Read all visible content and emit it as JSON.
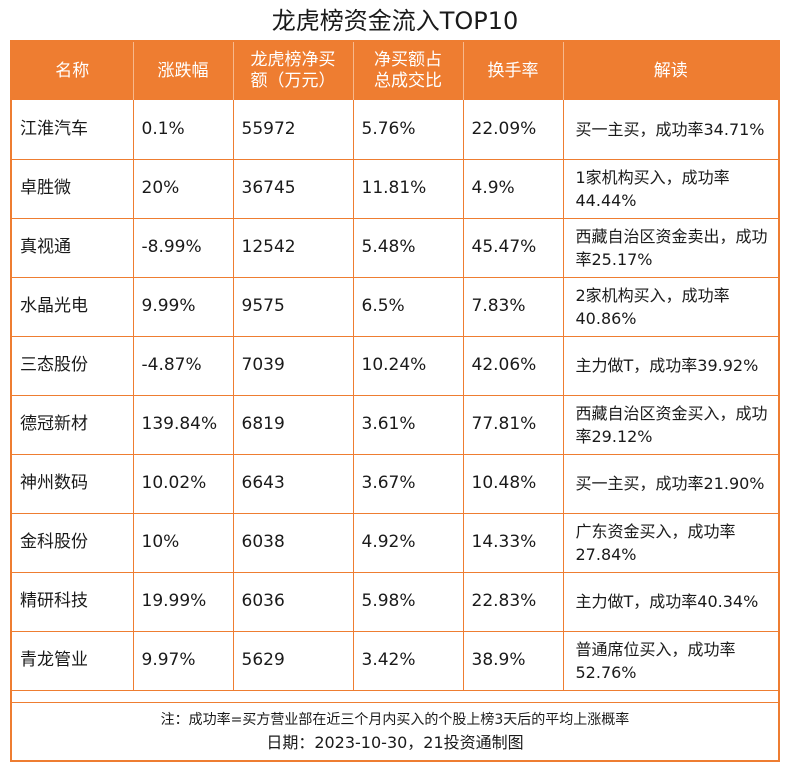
{
  "title": "龙虎榜资金流入TOP10",
  "headers": [
    "名称",
    "涨跌幅",
    "龙虎榜净买额（万元）",
    "净买额占总成交比",
    "换手率",
    "解读"
  ],
  "header_lines": [
    [
      "名称"
    ],
    [
      "涨跌幅"
    ],
    [
      "龙虎榜净买",
      "额（万元）"
    ],
    [
      "净买额占",
      "总成交比"
    ],
    [
      "换手率"
    ],
    [
      "解读"
    ]
  ],
  "rows": [
    {
      "name": "江淮汽车",
      "change": "0.1%",
      "net_buy": "55972",
      "ratio": "5.76%",
      "turnover": "22.09%",
      "note": "买一主买，成功率34.71%"
    },
    {
      "name": "卓胜微",
      "change": "20%",
      "net_buy": "36745",
      "ratio": "11.81%",
      "turnover": "4.9%",
      "note": "1家机构买入，成功率44.44%"
    },
    {
      "name": "真视通",
      "change": "-8.99%",
      "net_buy": "12542",
      "ratio": "5.48%",
      "turnover": "45.47%",
      "note": "西藏自治区资金卖出，成功率25.17%"
    },
    {
      "name": "水晶光电",
      "change": "9.99%",
      "net_buy": "9575",
      "ratio": "6.5%",
      "turnover": "7.83%",
      "note": "2家机构买入，成功率40.86%"
    },
    {
      "name": "三态股份",
      "change": "-4.87%",
      "net_buy": "7039",
      "ratio": "10.24%",
      "turnover": "42.06%",
      "note": "主力做T，成功率39.92%"
    },
    {
      "name": "德冠新材",
      "change": "139.84%",
      "net_buy": "6819",
      "ratio": "3.61%",
      "turnover": "77.81%",
      "note": "西藏自治区资金买入，成功率29.12%"
    },
    {
      "name": "神州数码",
      "change": "10.02%",
      "net_buy": "6643",
      "ratio": "3.67%",
      "turnover": "10.48%",
      "note": "买一主买，成功率21.90%"
    },
    {
      "name": "金科股份",
      "change": "10%",
      "net_buy": "6038",
      "ratio": "4.92%",
      "turnover": "14.33%",
      "note": "广东资金买入，成功率27.84%"
    },
    {
      "name": "精研科技",
      "change": "19.99%",
      "net_buy": "6036",
      "ratio": "5.98%",
      "turnover": "22.83%",
      "note": "主力做T，成功率40.34%"
    },
    {
      "name": "青龙管业",
      "change": "9.97%",
      "net_buy": "5629",
      "ratio": "3.42%",
      "turnover": "38.9%",
      "note": "普通席位买入，成功率52.76%"
    }
  ],
  "footnote": "注：成功率=买方营业部在近三个月内买入的个股上榜3天后的平均上涨概率",
  "date_line": "日期：2023-10-30，21投资通制图",
  "colors": {
    "accent": "#ee7d31",
    "header_text": "#ffffff"
  }
}
